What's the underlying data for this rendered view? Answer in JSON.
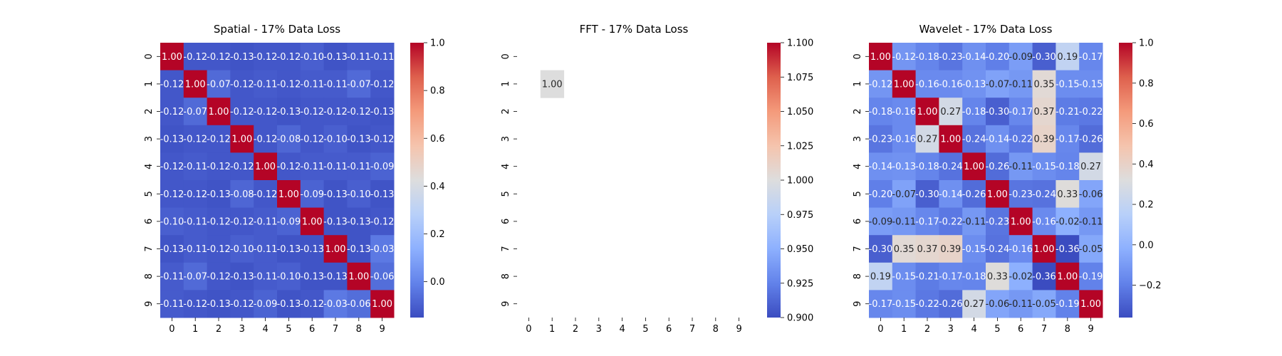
{
  "chart_data": [
    {
      "type": "heatmap",
      "title": "Spatial - 17% Data Loss",
      "x_ticks": [
        "0",
        "1",
        "2",
        "3",
        "4",
        "5",
        "6",
        "7",
        "8",
        "9"
      ],
      "y_ticks": [
        "0",
        "1",
        "2",
        "3",
        "4",
        "5",
        "6",
        "7",
        "8",
        "9"
      ],
      "colormap": "coolwarm",
      "vmin": -0.15,
      "vmax": 1.0,
      "colorbar_ticks": [
        "1.0",
        "0.8",
        "0.6",
        "0.4",
        "0.2",
        "0.0"
      ],
      "colorbar_tick_values": [
        1.0,
        0.8,
        0.6,
        0.4,
        0.2,
        0.0
      ],
      "cells": [
        [
          1.0,
          -0.12,
          -0.12,
          -0.13,
          -0.12,
          -0.12,
          -0.1,
          -0.13,
          -0.11,
          -0.11
        ],
        [
          -0.12,
          1.0,
          -0.07,
          -0.12,
          -0.11,
          -0.12,
          -0.11,
          -0.11,
          -0.07,
          -0.12
        ],
        [
          -0.12,
          -0.07,
          1.0,
          -0.12,
          -0.12,
          -0.13,
          -0.12,
          -0.12,
          -0.12,
          -0.13
        ],
        [
          -0.13,
          -0.12,
          -0.12,
          1.0,
          -0.12,
          -0.08,
          -0.12,
          -0.1,
          -0.13,
          -0.12
        ],
        [
          -0.12,
          -0.11,
          -0.12,
          -0.12,
          1.0,
          -0.12,
          -0.11,
          -0.11,
          -0.11,
          -0.09
        ],
        [
          -0.12,
          -0.12,
          -0.13,
          -0.08,
          -0.12,
          1.0,
          -0.09,
          -0.13,
          -0.1,
          -0.13
        ],
        [
          -0.1,
          -0.11,
          -0.12,
          -0.12,
          -0.11,
          -0.09,
          1.0,
          -0.13,
          -0.13,
          -0.12
        ],
        [
          -0.13,
          -0.11,
          -0.12,
          -0.1,
          -0.11,
          -0.13,
          -0.13,
          1.0,
          -0.13,
          -0.03
        ],
        [
          -0.11,
          -0.07,
          -0.12,
          -0.13,
          -0.11,
          -0.1,
          -0.13,
          -0.13,
          1.0,
          -0.06
        ],
        [
          -0.11,
          -0.12,
          -0.13,
          -0.12,
          -0.09,
          -0.13,
          -0.12,
          -0.03,
          -0.06,
          1.0
        ]
      ]
    },
    {
      "type": "heatmap",
      "title": "FFT - 17% Data Loss",
      "x_ticks": [
        "0",
        "1",
        "2",
        "3",
        "4",
        "5",
        "6",
        "7",
        "8",
        "9"
      ],
      "y_ticks": [
        "0",
        "1",
        "2",
        "3",
        "4",
        "5",
        "6",
        "7",
        "8",
        "9"
      ],
      "colormap": "coolwarm",
      "vmin": 0.9,
      "vmax": 1.1,
      "colorbar_ticks": [
        "1.100",
        "1.075",
        "1.050",
        "1.025",
        "1.000",
        "0.975",
        "0.950",
        "0.925",
        "0.900"
      ],
      "colorbar_tick_values": [
        1.1,
        1.075,
        1.05,
        1.025,
        1.0,
        0.975,
        0.95,
        0.925,
        0.9
      ],
      "cells": [
        [
          null,
          null,
          null,
          null,
          null,
          null,
          null,
          null,
          null,
          null
        ],
        [
          null,
          1.0,
          null,
          null,
          null,
          null,
          null,
          null,
          null,
          null
        ],
        [
          null,
          null,
          null,
          null,
          null,
          null,
          null,
          null,
          null,
          null
        ],
        [
          null,
          null,
          null,
          null,
          null,
          null,
          null,
          null,
          null,
          null
        ],
        [
          null,
          null,
          null,
          null,
          null,
          null,
          null,
          null,
          null,
          null
        ],
        [
          null,
          null,
          null,
          null,
          null,
          null,
          null,
          null,
          null,
          null
        ],
        [
          null,
          null,
          null,
          null,
          null,
          null,
          null,
          null,
          null,
          null
        ],
        [
          null,
          null,
          null,
          null,
          null,
          null,
          null,
          null,
          null,
          null
        ],
        [
          null,
          null,
          null,
          null,
          null,
          null,
          null,
          null,
          null,
          null
        ],
        [
          null,
          null,
          null,
          null,
          null,
          null,
          null,
          null,
          null,
          null
        ]
      ]
    },
    {
      "type": "heatmap",
      "title": "Wavelet - 17% Data Loss",
      "x_ticks": [
        "0",
        "1",
        "2",
        "3",
        "4",
        "5",
        "6",
        "7",
        "8",
        "9"
      ],
      "y_ticks": [
        "0",
        "1",
        "2",
        "3",
        "4",
        "5",
        "6",
        "7",
        "8",
        "9"
      ],
      "colormap": "coolwarm",
      "vmin": -0.36,
      "vmax": 1.0,
      "colorbar_ticks": [
        "1.0",
        "0.8",
        "0.6",
        "0.4",
        "0.2",
        "0.0",
        "−0.2"
      ],
      "colorbar_tick_values": [
        1.0,
        0.8,
        0.6,
        0.4,
        0.2,
        0.0,
        -0.2
      ],
      "cells": [
        [
          1.0,
          -0.12,
          -0.18,
          -0.23,
          -0.14,
          -0.2,
          -0.09,
          -0.3,
          0.19,
          -0.17
        ],
        [
          -0.12,
          1.0,
          -0.16,
          -0.16,
          -0.13,
          -0.07,
          -0.11,
          0.35,
          -0.15,
          -0.15
        ],
        [
          -0.18,
          -0.16,
          1.0,
          0.27,
          -0.18,
          -0.3,
          -0.17,
          0.37,
          -0.21,
          -0.22
        ],
        [
          -0.23,
          -0.16,
          0.27,
          1.0,
          -0.24,
          -0.14,
          -0.22,
          0.39,
          -0.17,
          -0.26
        ],
        [
          -0.14,
          -0.13,
          -0.18,
          -0.24,
          1.0,
          -0.26,
          -0.11,
          -0.15,
          -0.18,
          0.27
        ],
        [
          -0.2,
          -0.07,
          -0.3,
          -0.14,
          -0.26,
          1.0,
          -0.23,
          -0.24,
          0.33,
          -0.06
        ],
        [
          -0.09,
          -0.11,
          -0.17,
          -0.22,
          -0.11,
          -0.23,
          1.0,
          -0.16,
          -0.02,
          -0.11
        ],
        [
          -0.3,
          0.35,
          0.37,
          0.39,
          -0.15,
          -0.24,
          -0.16,
          1.0,
          -0.36,
          -0.05
        ],
        [
          0.19,
          -0.15,
          -0.21,
          -0.17,
          -0.18,
          0.33,
          -0.02,
          -0.36,
          1.0,
          -0.19
        ],
        [
          -0.17,
          -0.15,
          -0.22,
          -0.26,
          0.27,
          -0.06,
          -0.11,
          -0.05,
          -0.19,
          1.0
        ]
      ]
    }
  ]
}
